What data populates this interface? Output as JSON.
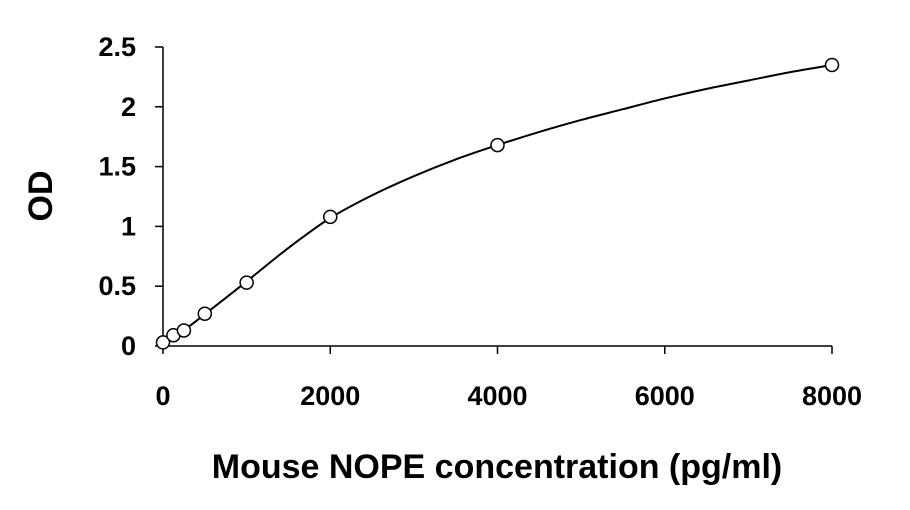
{
  "chart_data": {
    "type": "scatter",
    "title": "",
    "xlabel": "Mouse NOPE concentration (pg/ml)",
    "ylabel": "OD",
    "xlim": [
      0,
      8000
    ],
    "ylim": [
      0,
      2.5
    ],
    "x_ticks": [
      {
        "value": 0,
        "label": "0"
      },
      {
        "value": 2000,
        "label": "2000"
      },
      {
        "value": 4000,
        "label": "4000"
      },
      {
        "value": 6000,
        "label": "6000"
      },
      {
        "value": 8000,
        "label": "8000"
      }
    ],
    "y_ticks": [
      {
        "value": 0,
        "label": "0"
      },
      {
        "value": 0.5,
        "label": "0.5"
      },
      {
        "value": 1,
        "label": "1"
      },
      {
        "value": 1.5,
        "label": "1.5"
      },
      {
        "value": 2,
        "label": "2"
      },
      {
        "value": 2.5,
        "label": "2.5"
      }
    ],
    "grid": false,
    "legend": "none",
    "series": [
      {
        "marker": "open-circle",
        "x": [
          0,
          125,
          250,
          500,
          1000,
          2000,
          4000,
          8000
        ],
        "y": [
          0.03,
          0.09,
          0.13,
          0.27,
          0.53,
          1.08,
          1.68,
          2.35
        ]
      }
    ],
    "fit_curve": {
      "type": "smooth-fit",
      "x": [
        0,
        250,
        500,
        1000,
        1500,
        2000,
        2500,
        3000,
        3500,
        4000,
        4500,
        5000,
        5500,
        6000,
        6500,
        7000,
        7500,
        8000
      ],
      "y": [
        0.04,
        0.135,
        0.265,
        0.54,
        0.82,
        1.07,
        1.26,
        1.42,
        1.56,
        1.68,
        1.79,
        1.89,
        1.98,
        2.07,
        2.15,
        2.22,
        2.29,
        2.35
      ]
    },
    "colors": {
      "axis": "#000000",
      "marker_stroke": "#000000",
      "marker_fill": "#ffffff",
      "curve": "#000000"
    }
  }
}
